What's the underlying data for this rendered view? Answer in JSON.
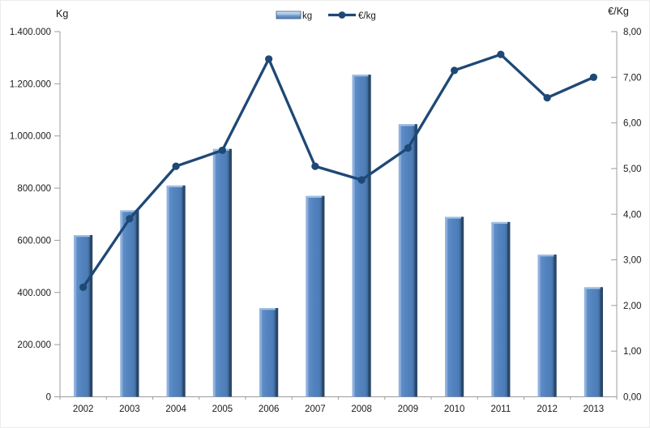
{
  "chart_data": {
    "type": "bar+line combo",
    "categories": [
      "2002",
      "2003",
      "2004",
      "2005",
      "2006",
      "2007",
      "2008",
      "2009",
      "2010",
      "2011",
      "2012",
      "2013"
    ],
    "series": [
      {
        "name": "kg",
        "type": "bar",
        "axis": "left",
        "values": [
          620000,
          715000,
          810000,
          950000,
          340000,
          770000,
          1235000,
          1045000,
          690000,
          670000,
          545000,
          420000
        ]
      },
      {
        "name": "€/kg",
        "type": "line",
        "axis": "right",
        "values": [
          2.4,
          3.9,
          5.05,
          5.4,
          7.4,
          5.05,
          4.75,
          5.45,
          7.15,
          7.5,
          6.55,
          7.0
        ]
      }
    ],
    "left_axis": {
      "title": "Kg",
      "min": 0,
      "max": 1400000,
      "step": 200000,
      "tick_labels": [
        "0",
        "200.000",
        "400.000",
        "600.000",
        "800.000",
        "1.000.000",
        "1.200.000",
        "1.400.000"
      ]
    },
    "right_axis": {
      "title": "€/Kg",
      "min": 0,
      "max": 8,
      "step": 1,
      "tick_labels": [
        "0,00",
        "1,00",
        "2,00",
        "3,00",
        "4,00",
        "5,00",
        "6,00",
        "7,00",
        "8,00"
      ]
    },
    "legend": {
      "position": "top-center",
      "entries": [
        "kg",
        "€/kg"
      ]
    },
    "grid": "off",
    "colors": {
      "bar_fill": "#4F81BD",
      "bar_highlight": "#9FC0E4",
      "bar_shadow": "#2A4869",
      "line": "#1E4876",
      "axis": "#9C9C9C",
      "text": "#1A1A1A"
    }
  }
}
